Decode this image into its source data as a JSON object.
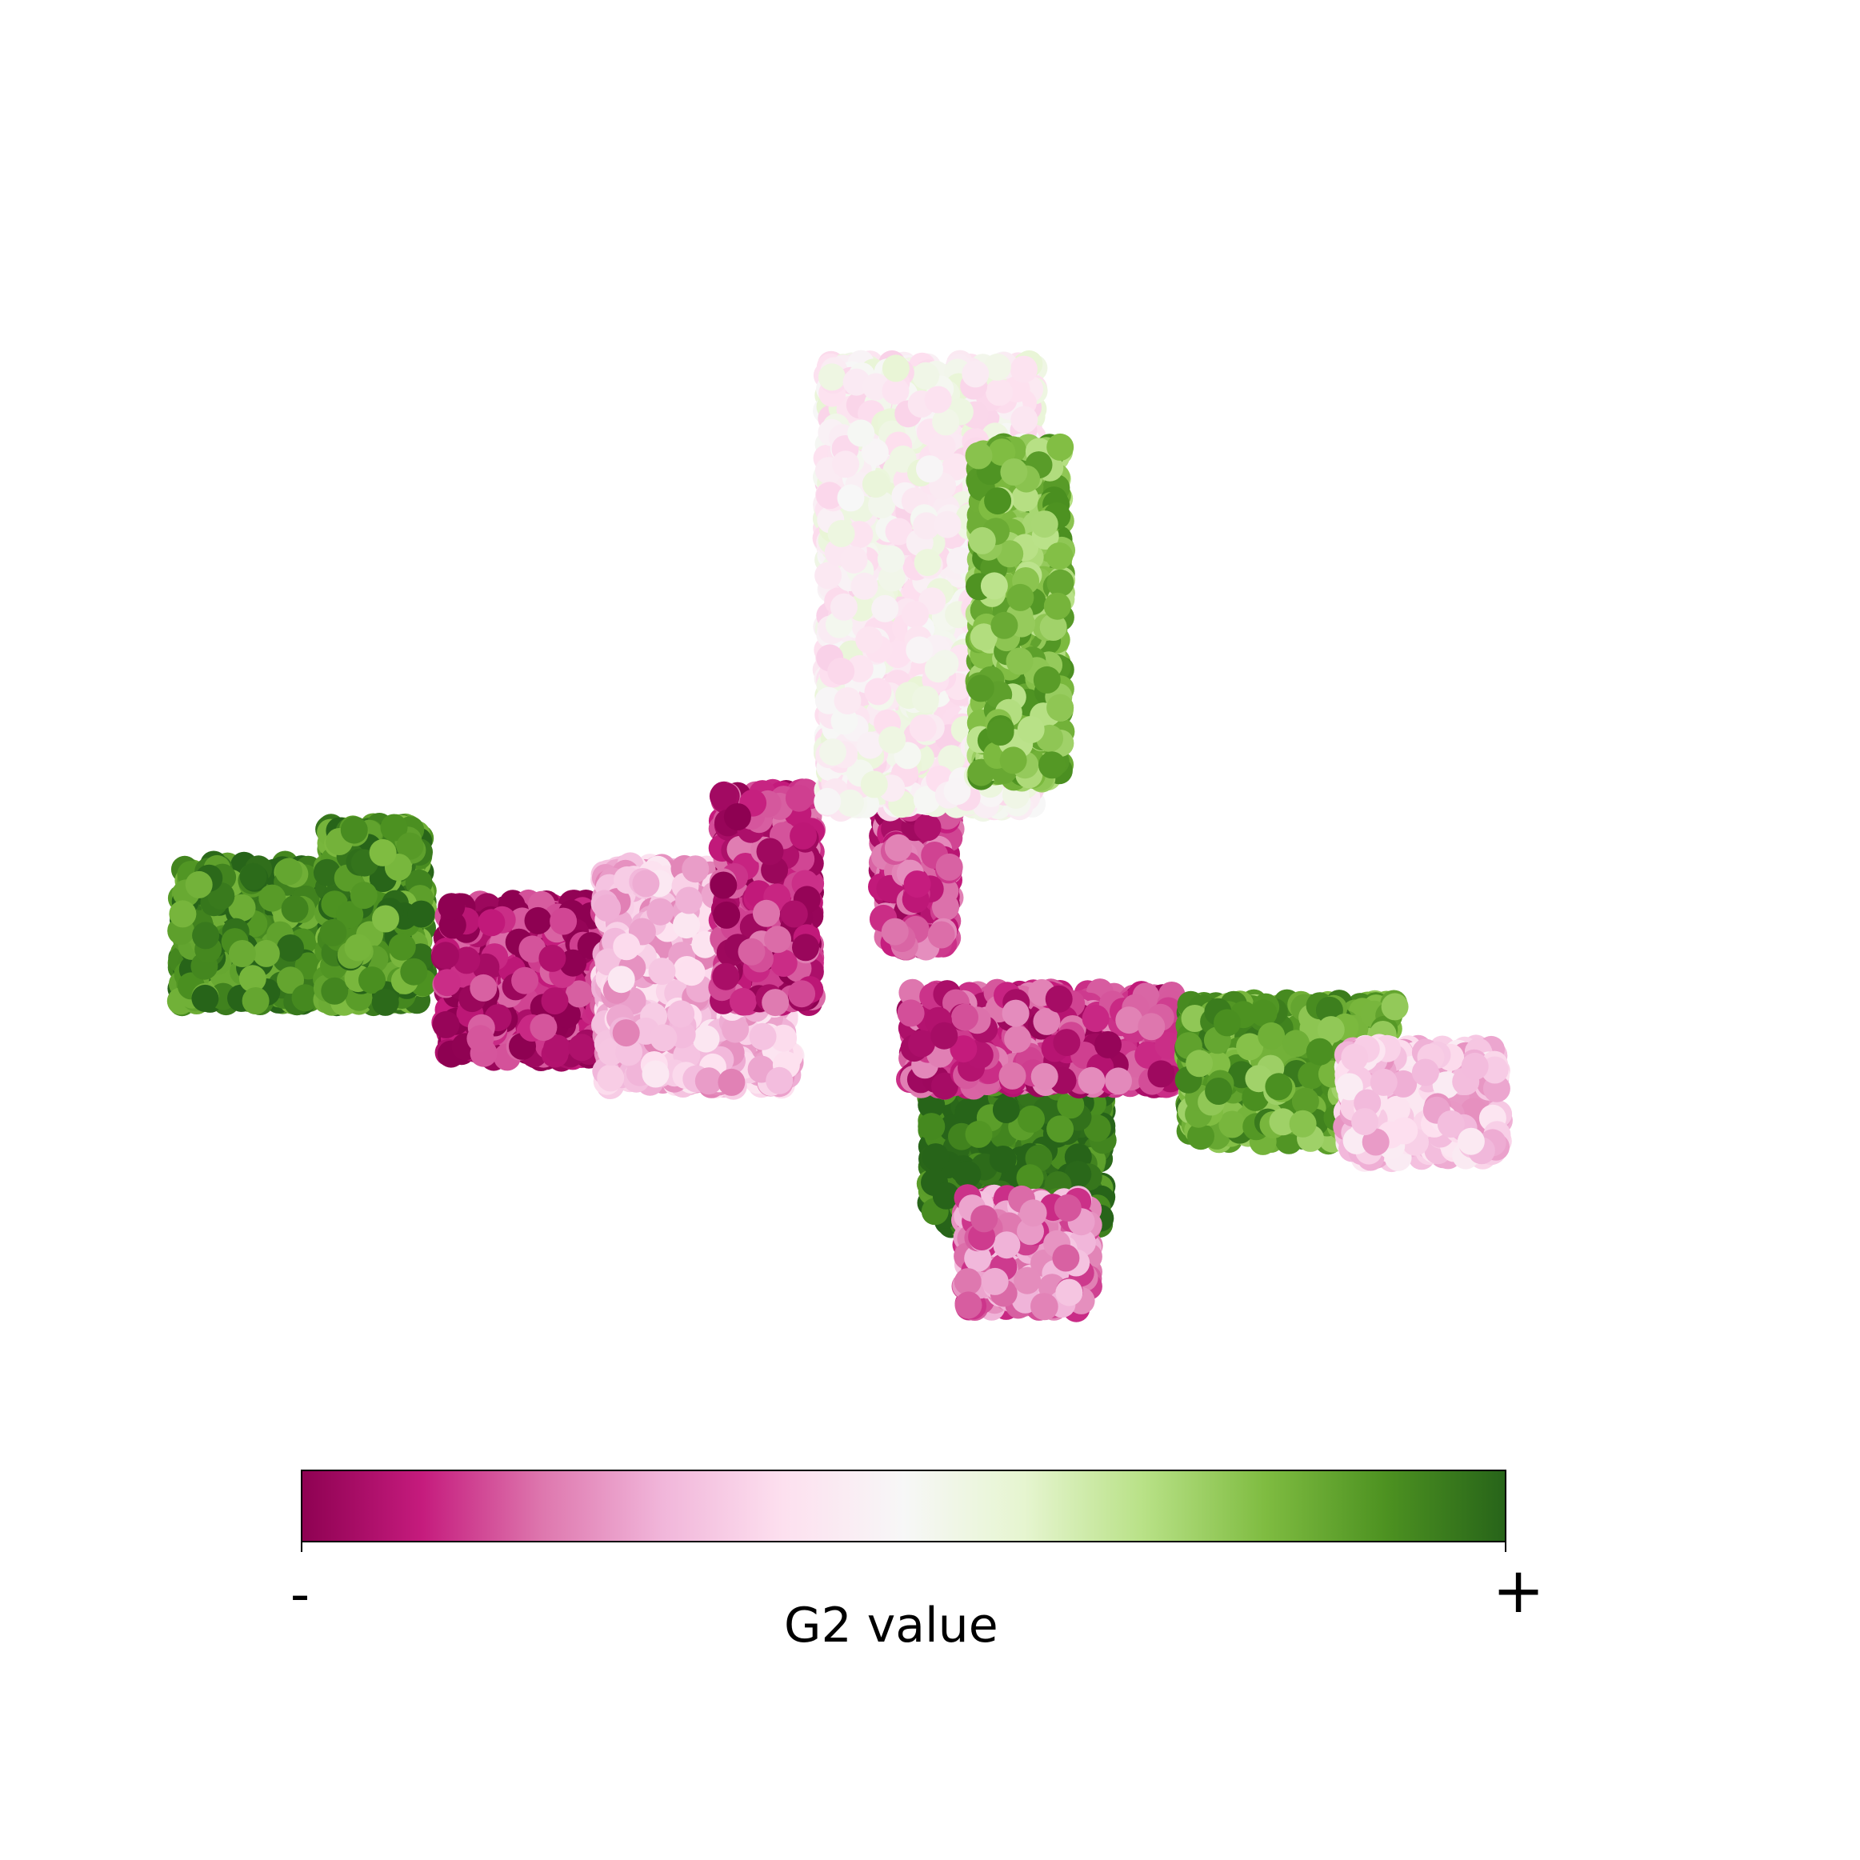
{
  "chart_data": {
    "type": "scatter",
    "title": "",
    "xlabel": "",
    "ylabel": "",
    "axes_visible": false,
    "grid": false,
    "colormap": {
      "name": "PiYG",
      "stops": [
        "#8e0152",
        "#c51b7d",
        "#de77ae",
        "#f1b6da",
        "#fde0ef",
        "#f7f7f7",
        "#e6f5d0",
        "#b8e186",
        "#7fbc41",
        "#4d9221",
        "#276419"
      ],
      "label": "G2 value",
      "min_label": "-",
      "max_label": "+",
      "placement": "bottom"
    },
    "value_range": [
      -1,
      1
    ],
    "regions": [
      {
        "name": "left-arm-green-west",
        "x": [
          -0.93,
          -0.74
        ],
        "y": [
          -0.3,
          -0.05
        ],
        "value_mean": 0.85
      },
      {
        "name": "left-arm-green-center",
        "x": [
          -0.72,
          -0.58
        ],
        "y": [
          -0.3,
          0.02
        ],
        "value_mean": 0.8
      },
      {
        "name": "left-arm-magenta",
        "x": [
          -0.55,
          -0.32
        ],
        "y": [
          -0.4,
          -0.12
        ],
        "value_mean": -0.85
      },
      {
        "name": "elbow-pink",
        "x": [
          -0.32,
          -0.05
        ],
        "y": [
          -0.45,
          -0.05
        ],
        "value_mean": -0.35
      },
      {
        "name": "elbow-magenta-stripe",
        "x": [
          -0.15,
          -0.02
        ],
        "y": [
          -0.3,
          0.08
        ],
        "value_mean": -0.8
      },
      {
        "name": "upper-arm-magenta-stripe",
        "x": [
          0.08,
          0.18
        ],
        "y": [
          -0.2,
          0.55
        ],
        "value_mean": -0.75
      },
      {
        "name": "upper-arm-pale",
        "x": [
          0.0,
          0.3
        ],
        "y": [
          0.05,
          0.85
        ],
        "value_mean": -0.05
      },
      {
        "name": "upper-arm-green-edge",
        "x": [
          0.22,
          0.34
        ],
        "y": [
          0.1,
          0.7
        ],
        "value_mean": 0.6
      },
      {
        "name": "right-cluster-green",
        "x": [
          0.15,
          0.4
        ],
        "y": [
          -0.7,
          -0.35
        ],
        "value_mean": 0.95
      },
      {
        "name": "right-cluster-magenta",
        "x": [
          0.12,
          0.5
        ],
        "y": [
          -0.45,
          -0.28
        ],
        "value_mean": -0.75
      },
      {
        "name": "right-cluster-pink-base",
        "x": [
          0.2,
          0.38
        ],
        "y": [
          -0.85,
          -0.65
        ],
        "value_mean": -0.55
      },
      {
        "name": "right-tail-green",
        "x": [
          0.52,
          0.82
        ],
        "y": [
          -0.55,
          -0.3
        ],
        "value_mean": 0.7
      },
      {
        "name": "right-tail-pink",
        "x": [
          0.75,
          0.97
        ],
        "y": [
          -0.58,
          -0.38
        ],
        "value_mean": -0.3
      }
    ]
  }
}
